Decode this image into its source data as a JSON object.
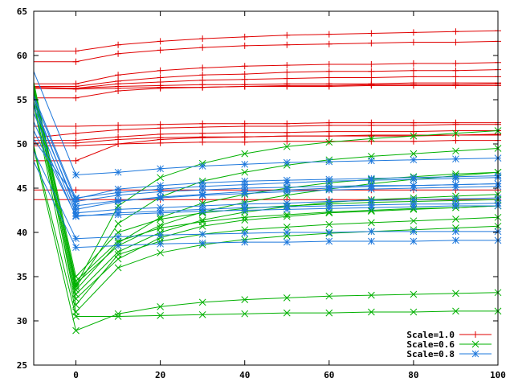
{
  "chart_data": {
    "type": "line",
    "title": "",
    "xlabel": "",
    "ylabel": "",
    "xlim": [
      -10,
      100
    ],
    "ylim": [
      25,
      65
    ],
    "xticks": [
      0,
      20,
      40,
      60,
      80,
      100
    ],
    "yticks": [
      25,
      30,
      35,
      40,
      45,
      50,
      55,
      60,
      65
    ],
    "grid": false,
    "legend_position": "bottom-right",
    "x": [
      -10,
      0,
      10,
      20,
      30,
      40,
      50,
      60,
      70,
      80,
      90,
      100
    ],
    "groups": [
      {
        "name": "Scale=1.0",
        "color": "#e00000",
        "marker": "plus",
        "lines": [
          [
            60.5,
            60.5,
            61.2,
            61.6,
            61.9,
            62.1,
            62.3,
            62.4,
            62.5,
            62.6,
            62.7,
            62.8
          ],
          [
            59.3,
            59.3,
            60.2,
            60.6,
            60.9,
            61.1,
            61.2,
            61.3,
            61.4,
            61.5,
            61.5,
            61.6
          ],
          [
            56.8,
            56.8,
            57.8,
            58.3,
            58.6,
            58.8,
            58.9,
            59.0,
            59.0,
            59.1,
            59.1,
            59.2
          ],
          [
            56.5,
            56.5,
            57.1,
            57.5,
            57.8,
            57.9,
            58.1,
            58.2,
            58.2,
            58.3,
            58.3,
            58.4
          ],
          [
            56.3,
            56.3,
            56.8,
            57.0,
            57.2,
            57.3,
            57.4,
            57.5,
            57.5,
            57.6,
            57.6,
            57.6
          ],
          [
            56.4,
            56.3,
            56.5,
            56.6,
            56.7,
            56.7,
            56.8,
            56.8,
            56.8,
            56.9,
            56.9,
            56.9
          ],
          [
            56.3,
            56.2,
            56.3,
            56.4,
            56.4,
            56.5,
            56.5,
            56.5,
            56.6,
            56.6,
            56.6,
            56.6
          ],
          [
            55.2,
            55.2,
            56.0,
            56.3,
            56.4,
            56.5,
            56.6,
            56.6,
            56.7,
            56.7,
            56.7,
            56.8
          ],
          [
            52.0,
            52.0,
            52.1,
            52.2,
            52.3,
            52.3,
            52.3,
            52.4,
            52.4,
            52.4,
            52.4,
            52.4
          ],
          [
            50.7,
            51.2,
            51.6,
            51.8,
            51.9,
            52.0,
            52.0,
            52.1,
            52.1,
            52.1,
            52.2,
            52.2
          ],
          [
            50.4,
            50.4,
            50.8,
            51.1,
            51.2,
            51.3,
            51.3,
            51.4,
            51.4,
            51.4,
            51.5,
            51.5
          ],
          [
            50.1,
            50.1,
            50.5,
            50.7,
            50.8,
            50.8,
            50.9,
            50.9,
            50.9,
            50.9,
            51.0,
            51.0
          ],
          [
            49.8,
            49.8,
            50.0,
            50.1,
            50.2,
            50.2,
            50.3,
            50.3,
            50.3,
            50.3,
            50.4,
            50.4
          ],
          [
            48.1,
            48.1,
            50.0,
            50.5,
            50.7,
            50.8,
            50.9,
            50.9,
            51.0,
            51.0,
            51.0,
            51.1
          ],
          [
            44.8,
            44.8,
            44.8,
            44.8,
            44.8,
            44.8,
            44.8,
            44.8,
            44.8,
            44.8,
            44.8,
            44.8
          ],
          [
            43.7,
            43.7,
            43.7,
            43.7,
            43.7,
            43.7,
            43.7,
            43.7,
            43.7,
            43.7,
            43.7,
            43.7
          ]
        ]
      },
      {
        "name": "Scale=0.6",
        "color": "#00b000",
        "marker": "x",
        "lines": [
          [
            56.5,
            34.0,
            43.0,
            46.2,
            47.8,
            48.9,
            49.7,
            50.2,
            50.6,
            50.9,
            51.2,
            51.5
          ],
          [
            57.0,
            33.8,
            41.0,
            44.0,
            45.8,
            46.8,
            47.6,
            48.2,
            48.6,
            48.9,
            49.2,
            49.5
          ],
          [
            55.8,
            33.5,
            38.8,
            41.7,
            43.3,
            44.3,
            45.0,
            45.6,
            46.0,
            46.3,
            46.6,
            46.8
          ],
          [
            56.2,
            34.2,
            38.5,
            40.8,
            42.3,
            43.4,
            44.2,
            44.9,
            45.5,
            46.0,
            46.4,
            46.8
          ],
          [
            55.5,
            33.0,
            37.8,
            40.0,
            41.4,
            42.3,
            42.9,
            43.4,
            43.7,
            43.9,
            44.1,
            44.3
          ],
          [
            56.7,
            35.0,
            40.0,
            41.5,
            42.2,
            42.7,
            43.0,
            43.2,
            43.4,
            43.5,
            43.6,
            43.7
          ],
          [
            54.8,
            32.5,
            37.0,
            39.4,
            40.7,
            41.4,
            41.8,
            42.2,
            42.4,
            42.6,
            42.8,
            43.0
          ],
          [
            56.0,
            31.8,
            37.5,
            39.0,
            39.8,
            40.3,
            40.6,
            40.9,
            41.1,
            41.3,
            41.5,
            41.7
          ],
          [
            54.5,
            31.0,
            36.0,
            37.7,
            38.6,
            39.2,
            39.6,
            39.9,
            40.1,
            40.3,
            40.5,
            40.7
          ],
          [
            49.8,
            30.5,
            30.5,
            30.6,
            30.7,
            30.8,
            30.9,
            30.9,
            31.0,
            31.0,
            31.1,
            31.1
          ],
          [
            49.5,
            28.9,
            30.8,
            31.6,
            32.1,
            32.4,
            32.6,
            32.8,
            32.9,
            33.0,
            33.1,
            33.2
          ],
          [
            56.3,
            34.5,
            39.0,
            40.5,
            41.2,
            41.7,
            42.0,
            42.3,
            42.5,
            42.7,
            42.8,
            43.0
          ]
        ]
      },
      {
        "name": "Scale=0.8",
        "color": "#1e78dc",
        "marker": "star",
        "lines": [
          [
            58.2,
            46.5,
            46.8,
            47.2,
            47.5,
            47.7,
            47.9,
            48.0,
            48.1,
            48.2,
            48.3,
            48.4
          ],
          [
            55.5,
            43.8,
            44.9,
            45.3,
            45.6,
            45.8,
            45.9,
            46.0,
            46.1,
            46.2,
            46.3,
            46.4
          ],
          [
            55.2,
            43.5,
            44.2,
            44.6,
            44.8,
            45.0,
            45.1,
            45.2,
            45.3,
            45.3,
            45.4,
            45.5
          ],
          [
            54.7,
            42.6,
            43.5,
            44.0,
            44.3,
            44.6,
            44.8,
            45.0,
            45.2,
            45.3,
            45.4,
            45.5
          ],
          [
            54.2,
            43.0,
            43.6,
            43.9,
            44.2,
            44.4,
            44.6,
            44.8,
            44.9,
            45.0,
            45.1,
            45.2
          ],
          [
            53.5,
            42.2,
            42.6,
            42.8,
            43.0,
            43.2,
            43.3,
            43.5,
            43.6,
            43.7,
            43.8,
            43.9
          ],
          [
            52.5,
            41.8,
            42.2,
            42.4,
            42.6,
            42.8,
            42.9,
            43.0,
            43.1,
            43.2,
            43.2,
            43.3
          ],
          [
            51.5,
            41.9,
            42.0,
            42.2,
            42.4,
            42.5,
            42.6,
            42.7,
            42.8,
            42.9,
            43.0,
            43.0
          ],
          [
            49.2,
            39.3,
            39.5,
            39.7,
            39.8,
            39.9,
            40.0,
            40.0,
            40.1,
            40.1,
            40.1,
            40.1
          ],
          [
            48.0,
            38.3,
            38.5,
            38.7,
            38.8,
            38.9,
            38.9,
            39.0,
            39.0,
            39.0,
            39.1,
            39.1
          ],
          [
            50.5,
            43.9,
            44.5,
            44.9,
            45.2,
            45.4,
            45.6,
            45.8,
            45.9,
            46.0,
            46.1,
            46.2
          ]
        ]
      }
    ]
  }
}
